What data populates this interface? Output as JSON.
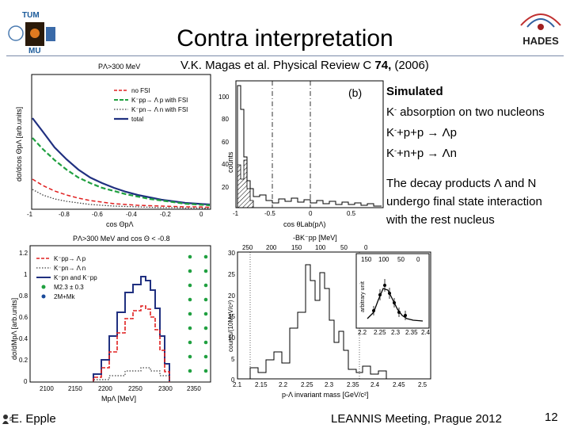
{
  "title": "Contra interpretation",
  "reference": {
    "authors": "V.K. Magas et al. Physical Review C",
    "volume": "74,",
    "year": "(2006)"
  },
  "logos": {
    "left_top": "TUM",
    "left_bottom": "MU",
    "right": "HADES"
  },
  "sidebar": {
    "heading": "Simulated",
    "line1_a": "K",
    "line1_sup": "-",
    "line1_b": " absorption on two nucleons",
    "line2_a": "K",
    "line2_sup": "-",
    "line2_b": "+p+p → Λp",
    "line3_a": "K",
    "line3_sup": "-",
    "line3_b": "+n+p → Λn",
    "para1": "The decay products Λ and N",
    "para2": "undergo final state interaction",
    "para3": "with the rest nucleus"
  },
  "footer": {
    "author": "E. Epple",
    "conference": "LEANNIS Meeting, Prague 2012",
    "page": "12"
  },
  "plot_tl": {
    "title": "PΛ>300 MeV",
    "xlabel": "cos ΘpΛ",
    "ylabel": "dσ/dcos ΘpΛ [arb.units]",
    "xticks": [
      "-1",
      "-0.8",
      "-0.6",
      "-0.4",
      "-0.2",
      "0"
    ],
    "legend": [
      "no FSI",
      "K⁻pp→ Λ p with FSI",
      "K⁻pn→ Λ n with FSI",
      "total"
    ],
    "colors": {
      "no_fsi": "#e02020",
      "lambda_p": "#20a040",
      "lambda_n": "#404040",
      "total": "#203080"
    }
  },
  "plot_tm": {
    "panel_label": "(b)",
    "xlabel": "cos θLab(pΛ)",
    "ylabel": "counts",
    "xticks": [
      "-1",
      "-0.5",
      "0",
      "0.5"
    ],
    "yticks": [
      "100",
      "80",
      "60",
      "40",
      "20"
    ]
  },
  "plot_bl": {
    "title": "PΛ>300 MeV and cos Θ < -0.8",
    "xlabel": "MpΛ [MeV]",
    "ylabel": "dσ/dMpΛ [arb.units]",
    "xticks": [
      "2100",
      "2150",
      "2200",
      "2250",
      "2300",
      "2350"
    ],
    "yticks": [
      "1.2",
      "1",
      "0.8",
      "0.6",
      "0.4",
      "0.2",
      "0"
    ],
    "legend": [
      "K⁻pp→ Λ p",
      "K⁻pn→ Λ n",
      "K⁻pn and K⁻pp",
      "M2.3 ± 0.3",
      "2M+Mk"
    ]
  },
  "plot_br": {
    "top_axis_label": "-BK⁻pp [MeV]",
    "top_ticks": [
      "250",
      "200",
      "150",
      "100",
      "50",
      "0"
    ],
    "xlabel": "p-Λ invariant mass [GeV/c²]",
    "ylabel": "counts/(10MeV/c²)",
    "xticks": [
      "2.1",
      "2.15",
      "2.2",
      "2.25",
      "2.3",
      "2.35",
      "2.4",
      "2.45",
      "2.5"
    ],
    "yticks": [
      "30",
      "25",
      "20",
      "15",
      "10",
      "5",
      "0"
    ],
    "inset_top_ticks": [
      "150",
      "100",
      "50",
      "0"
    ],
    "inset_xticks": [
      "2.2",
      "2.25",
      "2.3",
      "2.35",
      "2.4"
    ],
    "inset_ylabel": "arbitrary unit"
  }
}
